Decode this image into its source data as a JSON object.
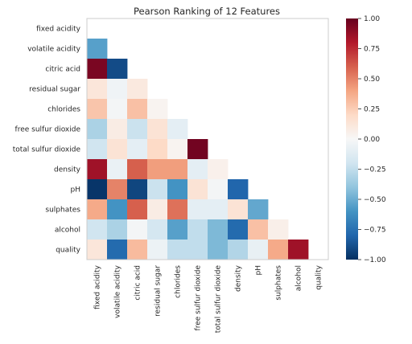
{
  "chart_data": {
    "type": "heatmap",
    "title": "Pearson Ranking of 12 Features",
    "features": [
      "fixed acidity",
      "volatile acidity",
      "citric acid",
      "residual sugar",
      "chlorides",
      "free sulfur dioxide",
      "total sulfur dioxide",
      "density",
      "pH",
      "sulphates",
      "alcohol",
      "quality"
    ],
    "matrix": [
      [
        null,
        null,
        null,
        null,
        null,
        null,
        null,
        null,
        null,
        null,
        null,
        null
      ],
      [
        -0.55,
        null,
        null,
        null,
        null,
        null,
        null,
        null,
        null,
        null,
        null,
        null
      ],
      [
        0.95,
        -0.9,
        null,
        null,
        null,
        null,
        null,
        null,
        null,
        null,
        null,
        null
      ],
      [
        0.12,
        -0.04,
        0.1,
        null,
        null,
        null,
        null,
        null,
        null,
        null,
        null,
        null
      ],
      [
        0.28,
        -0.02,
        0.3,
        0.03,
        null,
        null,
        null,
        null,
        null,
        null,
        null,
        null
      ],
      [
        -0.32,
        0.08,
        -0.22,
        0.14,
        -0.1,
        null,
        null,
        null,
        null,
        null,
        null,
        null
      ],
      [
        -0.2,
        0.14,
        -0.1,
        0.2,
        0.03,
        0.97,
        null,
        null,
        null,
        null,
        null,
        null
      ],
      [
        0.85,
        -0.07,
        0.6,
        0.42,
        0.42,
        -0.1,
        0.05,
        null,
        null,
        null,
        null,
        null
      ],
      [
        -0.98,
        0.5,
        -0.92,
        -0.22,
        -0.6,
        0.14,
        -0.02,
        -0.8,
        null,
        null,
        null,
        null
      ],
      [
        0.38,
        -0.6,
        0.6,
        0.08,
        0.55,
        -0.1,
        -0.1,
        0.14,
        -0.52,
        null,
        null,
        null
      ],
      [
        -0.2,
        -0.32,
        -0.02,
        -0.18,
        -0.55,
        -0.25,
        -0.45,
        -0.78,
        0.3,
        0.06,
        null,
        null
      ],
      [
        0.12,
        -0.78,
        0.32,
        -0.06,
        -0.25,
        -0.25,
        -0.45,
        -0.3,
        -0.08,
        0.38,
        0.85,
        null
      ]
    ],
    "colorbar": {
      "min": -1.0,
      "max": 1.0,
      "ticks": [
        "1.00",
        "0.75",
        "0.50",
        "0.25",
        "0.00",
        "−0.25",
        "−0.50",
        "−0.75",
        "−1.00"
      ]
    },
    "colormap": [
      "#053061",
      "#2166ac",
      "#4393c3",
      "#92c5de",
      "#d1e5f0",
      "#f7f7f7",
      "#fddbc7",
      "#f4a582",
      "#d6604d",
      "#b2182b",
      "#67001f"
    ],
    "grid": false,
    "legend": "colorbar-right"
  }
}
